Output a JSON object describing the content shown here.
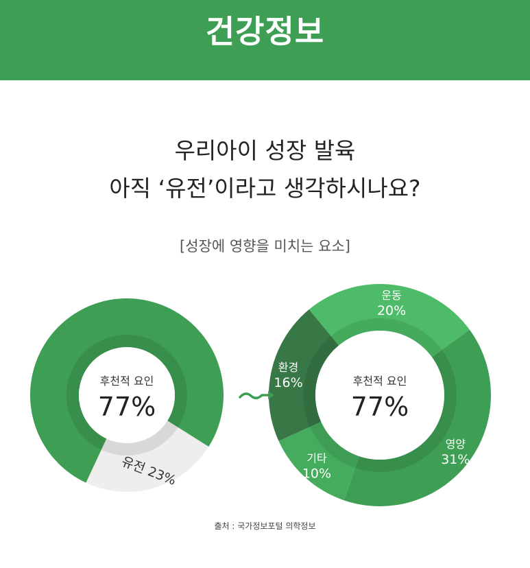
{
  "header": {
    "title": "건강정보"
  },
  "headline": {
    "line1": "우리아이 성장 발육",
    "line2": "아직 ‘유전’이라고 생각하시나요?"
  },
  "subtitle": "[성장에 영향을 미치는 요소]",
  "chart_data": [
    {
      "type": "pie",
      "center_label": "후천적 요인",
      "center_value": "77%",
      "slices": [
        {
          "label": "후천적 요인",
          "value": 77,
          "color": "#3e9e54"
        },
        {
          "label": "유전",
          "value": 23,
          "color": "#eeeeee",
          "display": "유전 23%"
        }
      ]
    },
    {
      "type": "pie",
      "center_label": "후천적 요인",
      "center_value": "77%",
      "slices": [
        {
          "label": "운동",
          "value": 20,
          "color": "#4dbb67",
          "display": "20%"
        },
        {
          "label": "영양",
          "value": 31,
          "color": "#3e9e54",
          "display": "31%"
        },
        {
          "label": "기타",
          "value": 10,
          "color": "#45ac5d",
          "display": "10%"
        },
        {
          "label": "환경",
          "value": 16,
          "color": "#377846",
          "display": "16%"
        }
      ]
    }
  ],
  "connector": {
    "icon": "tilde-arrow-icon",
    "color": "#3e9e54"
  },
  "source": "출처 : 국가정보포털 의학정보"
}
